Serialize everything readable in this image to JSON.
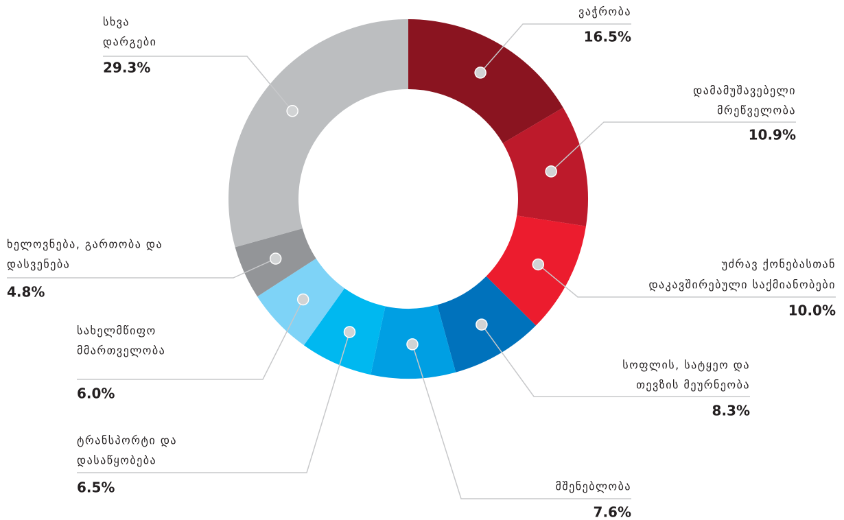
{
  "chart_data": {
    "type": "donut",
    "categories": [
      [
        "ვაჭრობა"
      ],
      [
        "დამამუშავებელი",
        "მრეწველობა"
      ],
      [
        "უძრავ ქონებასთან",
        "დაკავშირებული საქმიანობები"
      ],
      [
        "სოფლის, სატყეო და",
        "თევზის მეურნეობა"
      ],
      [
        "მშენებლობა"
      ],
      [
        "ტრანსპორტი და",
        "დასაწყობება"
      ],
      [
        "სახელმწიფო",
        "მმართველობა"
      ],
      [
        "ხელოვნება, გართობა და",
        "დასვენება"
      ],
      [
        "სხვა",
        "დარგები"
      ]
    ],
    "values": [
      16.5,
      10.9,
      10.0,
      8.3,
      7.6,
      6.5,
      6.0,
      4.8,
      29.3
    ],
    "value_labels": [
      "16.5%",
      "10.9%",
      "10.0%",
      "8.3%",
      "7.6%",
      "6.5%",
      "6.0%",
      "4.8%",
      "29.3%"
    ],
    "colors": [
      "#8a1420",
      "#bd1a2b",
      "#ec1c2e",
      "#0072bc",
      "#009fe3",
      "#00b8f0",
      "#7ed3f7",
      "#939598",
      "#bcbec0"
    ]
  }
}
